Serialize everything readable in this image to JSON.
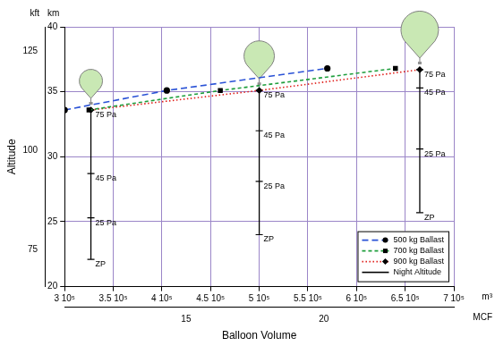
{
  "chart_data": {
    "type": "line",
    "x_label": "Balloon Volume",
    "y_label": "Altitude",
    "x_unit": "m³",
    "x2_unit": "MCF",
    "y_unit": "km",
    "y2_unit": "kft",
    "xlim": [
      300000,
      700000
    ],
    "xticks": [
      {
        "value": 300000,
        "label": "3 10⁵"
      },
      {
        "value": 350000,
        "label": "3.5 10⁵"
      },
      {
        "value": 400000,
        "label": "4 10⁵"
      },
      {
        "value": 450000,
        "label": "4.5 10⁵"
      },
      {
        "value": 500000,
        "label": "5 10⁵"
      },
      {
        "value": 550000,
        "label": "5.5 10⁵"
      },
      {
        "value": 600000,
        "label": "6 10⁵"
      },
      {
        "value": 650000,
        "label": "6.5 10⁵"
      },
      {
        "value": 700000,
        "label": "7 10⁵"
      }
    ],
    "x2lim": [
      10.59,
      24.72
    ],
    "x2ticks": [
      15,
      20
    ],
    "ylim": [
      20,
      40
    ],
    "yticks": [
      20,
      25,
      30,
      35,
      40
    ],
    "y2lim": [
      65.62,
      131.23
    ],
    "y2ticks": [
      75,
      100,
      125
    ],
    "grid": true,
    "legend": "lower right",
    "series": [
      {
        "name": "500 kg Ballast",
        "color": "#2a52d6",
        "line_style": "long_dash",
        "marker": "circle",
        "x": [
          300000,
          405000,
          570000
        ],
        "values": [
          33.6,
          35.1,
          36.8
        ]
      },
      {
        "name": "700 kg Ballast",
        "color": "#1e9e3c",
        "line_style": "dashed",
        "marker": "square",
        "x": [
          325000,
          460000,
          640000
        ],
        "values": [
          33.6,
          35.1,
          36.8
        ]
      },
      {
        "name": "900 kg Ballast",
        "color": "#e0201b",
        "line_style": "dotted",
        "marker": "diamond",
        "x": [
          327000,
          500000,
          665000
        ],
        "values": [
          33.6,
          35.1,
          36.7
        ]
      },
      {
        "name": "Night Altitude",
        "color": "#000000",
        "line_style": "solid",
        "marker": "dash",
        "x": [
          327000,
          327000,
          327000,
          327000,
          327000,
          500000,
          500000,
          500000,
          500000,
          500000,
          665000,
          665000,
          665000,
          665000
        ],
        "values": [
          33.6,
          28.7,
          25.3,
          22.1,
          null,
          35.1,
          32.0,
          28.1,
          24.0,
          null,
          36.7,
          35.3,
          30.6,
          25.7
        ]
      }
    ],
    "annotations": [
      {
        "text": "75 Pa",
        "x": 327000,
        "y": 33.6
      },
      {
        "text": "45 Pa",
        "x": 327000,
        "y": 28.7
      },
      {
        "text": "25 Pa",
        "x": 327000,
        "y": 25.3
      },
      {
        "text": "ZP",
        "x": 327000,
        "y": 22.1
      },
      {
        "text": "75 Pa",
        "x": 500000,
        "y": 35.1
      },
      {
        "text": "45 Pa",
        "x": 500000,
        "y": 32.0
      },
      {
        "text": "25 Pa",
        "x": 500000,
        "y": 28.1
      },
      {
        "text": "ZP",
        "x": 500000,
        "y": 24.0
      },
      {
        "text": "75 Pa",
        "x": 665000,
        "y": 36.7
      },
      {
        "text": "45 Pa",
        "x": 665000,
        "y": 35.3
      },
      {
        "text": "25 Pa",
        "x": 665000,
        "y": 30.6
      },
      {
        "text": "ZP",
        "x": 665000,
        "y": 25.7
      }
    ]
  }
}
